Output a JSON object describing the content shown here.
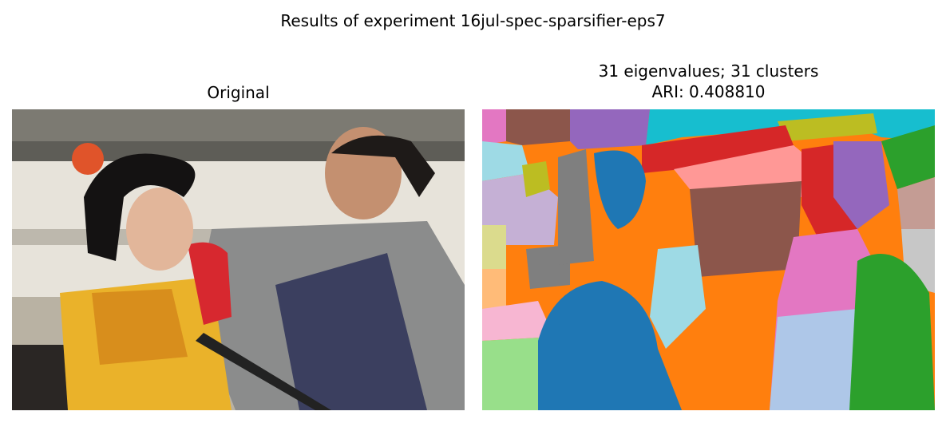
{
  "figure": {
    "suptitle": "Results of experiment 16jul-spec-sparsifier-eps7"
  },
  "left_panel": {
    "title": "Original",
    "image_subject": "photograph of a couple in traditional Japanese kimono in front of a building"
  },
  "right_panel": {
    "title_line1": "31 eigenvalues; 31 clusters",
    "title_line2": "ARI: 0.408810",
    "segment_palette": [
      "#1f77b4",
      "#aec7e8",
      "#ff7f0e",
      "#ffbb78",
      "#2ca02c",
      "#98df8a",
      "#d62728",
      "#ff9896",
      "#9467bd",
      "#c5b0d5",
      "#8c564b",
      "#c49c94",
      "#e377c2",
      "#f7b6d2",
      "#7f7f7f",
      "#c7c7c7",
      "#bcbd22",
      "#dbdb8d",
      "#17becf",
      "#9edae5"
    ]
  }
}
